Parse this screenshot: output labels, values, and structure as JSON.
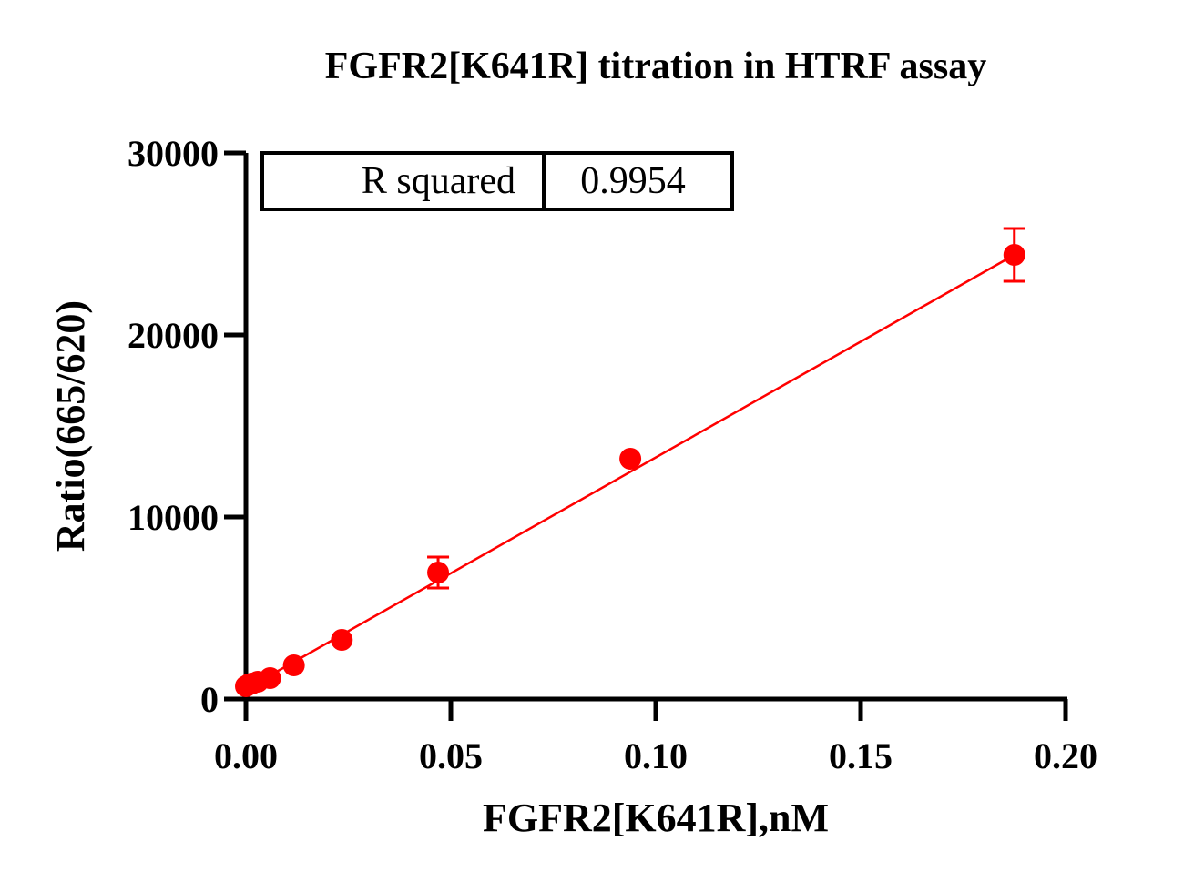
{
  "chart_data": {
    "type": "scatter",
    "title": "FGFR2[K641R] titration in HTRF assay",
    "xlabel": "FGFR2[K641R],nM",
    "ylabel": "Ratio(665/620)",
    "xlim": [
      0,
      0.2
    ],
    "ylim": [
      0,
      30000
    ],
    "x_ticks": [
      "0.00",
      "0.05",
      "0.10",
      "0.15",
      "0.20"
    ],
    "x_tick_values": [
      0,
      0.05,
      0.1,
      0.15,
      0.2
    ],
    "y_ticks": [
      "0",
      "10000",
      "20000",
      "30000"
    ],
    "y_tick_values": [
      0,
      10000,
      20000,
      30000
    ],
    "grid": false,
    "color": "#ff0000",
    "series": [
      {
        "points": [
          {
            "x": 0.0,
            "y": 700,
            "err": 0
          },
          {
            "x": 0.00073,
            "y": 800,
            "err": 0
          },
          {
            "x": 0.0015,
            "y": 850,
            "err": 0
          },
          {
            "x": 0.0029,
            "y": 950,
            "err": 0
          },
          {
            "x": 0.0059,
            "y": 1150,
            "err": 0
          },
          {
            "x": 0.0117,
            "y": 1850,
            "err": 0
          },
          {
            "x": 0.0234,
            "y": 3250,
            "err": 0
          },
          {
            "x": 0.0469,
            "y": 6950,
            "err": 850
          },
          {
            "x": 0.0938,
            "y": 13200,
            "err": 0
          },
          {
            "x": 0.1875,
            "y": 24400,
            "err": 1450
          }
        ],
        "fit": {
          "type": "linear",
          "from": [
            0.0,
            550
          ],
          "to": [
            0.1875,
            24400
          ]
        }
      }
    ],
    "legend_table": {
      "label": "R squared",
      "value": "0.9954",
      "position": "top-left"
    }
  }
}
